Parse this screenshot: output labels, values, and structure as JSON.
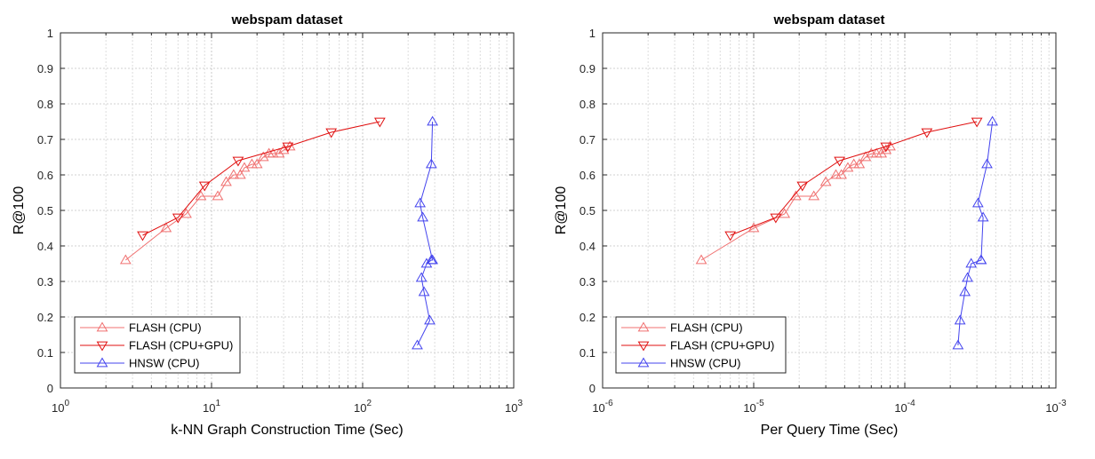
{
  "chart_data": [
    {
      "type": "line",
      "title": "webspam dataset",
      "xlabel": "k-NN Graph Construction Time (Sec)",
      "ylabel": "R@100",
      "xscale": "log",
      "xlim": [
        1,
        1000
      ],
      "ylim": [
        0,
        1
      ],
      "grid": true,
      "legend_position": "bottom-left",
      "x_ticks": [
        1,
        10,
        100,
        1000
      ],
      "x_tick_labels": [
        {
          "base": "10",
          "exp": "0"
        },
        {
          "base": "10",
          "exp": "1"
        },
        {
          "base": "10",
          "exp": "2"
        },
        {
          "base": "10",
          "exp": "3"
        }
      ],
      "y_ticks": [
        0,
        0.1,
        0.2,
        0.3,
        0.4,
        0.5,
        0.6,
        0.7,
        0.8,
        0.9,
        1
      ],
      "y_tick_labels": [
        "0",
        "0.1",
        "0.2",
        "0.3",
        "0.4",
        "0.5",
        "0.6",
        "0.7",
        "0.8",
        "0.9",
        "1"
      ],
      "series": [
        {
          "name": "FLASH (CPU)",
          "color": "#f07070",
          "marker": "triangle-up",
          "x": [
            2.7,
            5.0,
            6.8,
            8.5,
            11.0,
            12.5,
            14.0,
            15.5,
            16.5,
            18.5,
            20.0,
            22.0,
            24.0,
            25.5,
            28.0,
            30.0,
            33.0
          ],
          "y": [
            0.36,
            0.45,
            0.49,
            0.54,
            0.54,
            0.58,
            0.6,
            0.6,
            0.62,
            0.63,
            0.63,
            0.65,
            0.66,
            0.66,
            0.66,
            0.67,
            0.68
          ]
        },
        {
          "name": "FLASH (CPU+GPU)",
          "color": "#e01010",
          "marker": "triangle-down",
          "x": [
            3.5,
            6.0,
            9.0,
            15.0,
            32.0,
            62.0,
            130.0
          ],
          "y": [
            0.43,
            0.48,
            0.57,
            0.64,
            0.68,
            0.72,
            0.75
          ]
        },
        {
          "name": "HNSW (CPU)",
          "color": "#4444ee",
          "marker": "triangle-up",
          "x": [
            230,
            278,
            255,
            245,
            265,
            285,
            290,
            250,
            240,
            285,
            290
          ],
          "y": [
            0.12,
            0.19,
            0.27,
            0.31,
            0.35,
            0.36,
            0.36,
            0.48,
            0.52,
            0.63,
            0.75
          ]
        }
      ]
    },
    {
      "type": "line",
      "title": "webspam dataset",
      "xlabel": "Per Query Time (Sec)",
      "ylabel": "R@100",
      "xscale": "log",
      "xlim": [
        1e-06,
        0.001
      ],
      "ylim": [
        0,
        1
      ],
      "grid": true,
      "legend_position": "bottom-left",
      "x_ticks": [
        1e-06,
        1e-05,
        0.0001,
        0.001
      ],
      "x_tick_labels": [
        {
          "base": "10",
          "exp": "-6"
        },
        {
          "base": "10",
          "exp": "-5"
        },
        {
          "base": "10",
          "exp": "-4"
        },
        {
          "base": "10",
          "exp": "-3"
        }
      ],
      "y_ticks": [
        0,
        0.1,
        0.2,
        0.3,
        0.4,
        0.5,
        0.6,
        0.7,
        0.8,
        0.9,
        1
      ],
      "y_tick_labels": [
        "0",
        "0.1",
        "0.2",
        "0.3",
        "0.4",
        "0.5",
        "0.6",
        "0.7",
        "0.8",
        "0.9",
        "1"
      ],
      "series": [
        {
          "name": "FLASH (CPU)",
          "color": "#f07070",
          "marker": "triangle-up",
          "x": [
            4.5e-06,
            1e-05,
            1.6e-05,
            1.9e-05,
            2.5e-05,
            3e-05,
            3.5e-05,
            3.8e-05,
            4.2e-05,
            4.6e-05,
            5e-05,
            5.5e-05,
            6e-05,
            6.5e-05,
            7e-05,
            7.5e-05,
            8e-05
          ],
          "y": [
            0.36,
            0.45,
            0.49,
            0.54,
            0.54,
            0.58,
            0.6,
            0.6,
            0.62,
            0.63,
            0.63,
            0.65,
            0.66,
            0.66,
            0.66,
            0.67,
            0.68
          ]
        },
        {
          "name": "FLASH (CPU+GPU)",
          "color": "#e01010",
          "marker": "triangle-down",
          "x": [
            7e-06,
            1.4e-05,
            2.1e-05,
            3.7e-05,
            7.5e-05,
            0.00014,
            0.0003
          ],
          "y": [
            0.43,
            0.48,
            0.57,
            0.64,
            0.68,
            0.72,
            0.75
          ]
        },
        {
          "name": "HNSW (CPU)",
          "color": "#4444ee",
          "marker": "triangle-up",
          "x": [
            0.000225,
            0.000232,
            0.00025,
            0.00026,
            0.000275,
            0.00032,
            0.00032,
            0.00033,
            0.000305,
            0.00035,
            0.00038
          ],
          "y": [
            0.12,
            0.19,
            0.27,
            0.31,
            0.35,
            0.36,
            0.36,
            0.48,
            0.52,
            0.63,
            0.75
          ]
        }
      ]
    }
  ]
}
